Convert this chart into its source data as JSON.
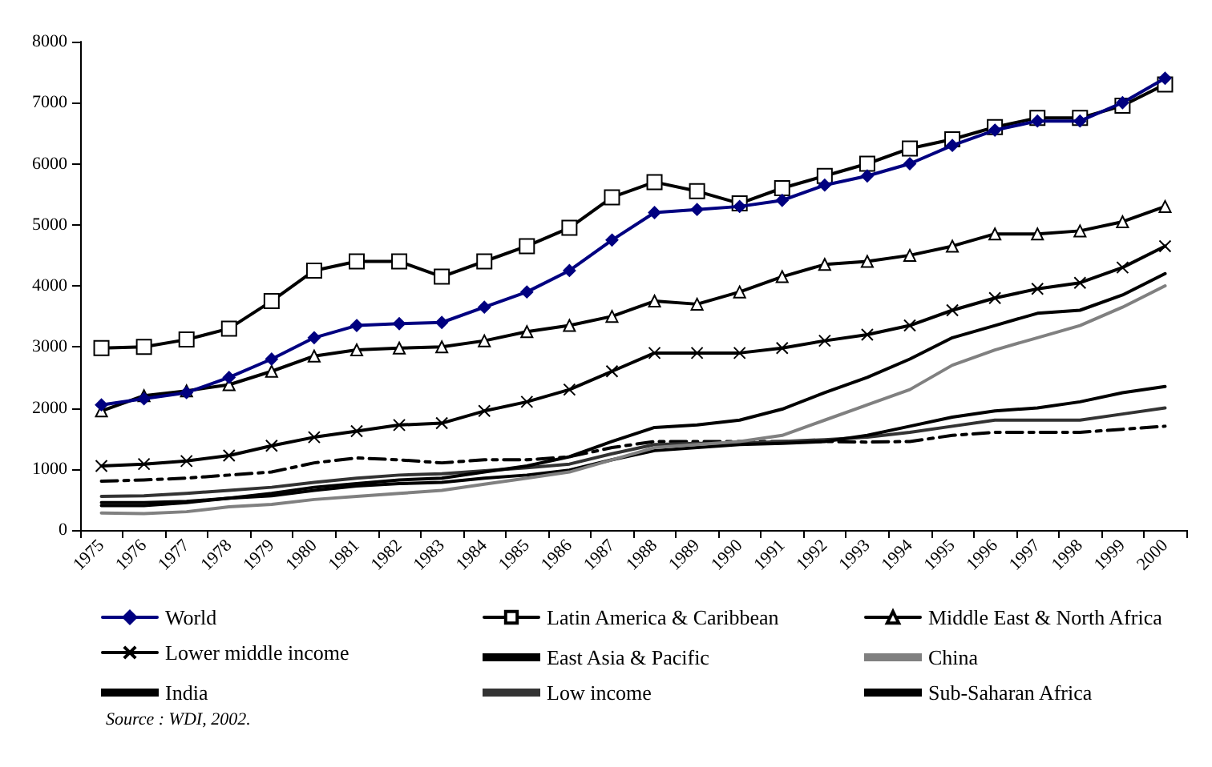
{
  "chart_data": {
    "type": "line",
    "categories": [
      "1975",
      "1976",
      "1977",
      "1978",
      "1979",
      "1980",
      "1981",
      "1982",
      "1983",
      "1984",
      "1985",
      "1986",
      "1987",
      "1988",
      "1989",
      "1990",
      "1991",
      "1992",
      "1993",
      "1994",
      "1995",
      "1996",
      "1997",
      "1998",
      "1999",
      "2000"
    ],
    "ylim": [
      0,
      8000
    ],
    "yticks": [
      0,
      1000,
      2000,
      3000,
      4000,
      5000,
      6000,
      7000,
      8000
    ],
    "grid": false,
    "legend": "bottom",
    "annotations": [
      "Source : WDI, 2002."
    ],
    "series": [
      {
        "name": "World",
        "color": "#000080",
        "marker": "diamond",
        "values": [
          2050,
          2150,
          2250,
          2500,
          2800,
          3150,
          3350,
          3380,
          3400,
          3650,
          3900,
          4250,
          4750,
          5200,
          5250,
          5300,
          5400,
          5650,
          5800,
          6000,
          6300,
          6550,
          6700,
          6700,
          7000,
          7400
        ]
      },
      {
        "name": "Latin America & Caribbean",
        "color": "#000000",
        "marker": "square",
        "values": [
          2980,
          3000,
          3120,
          3300,
          3750,
          4250,
          4400,
          4400,
          4150,
          4400,
          4650,
          4950,
          5450,
          5700,
          5550,
          5350,
          5600,
          5800,
          6000,
          6250,
          6400,
          6600,
          6750,
          6750,
          6950,
          7300
        ]
      },
      {
        "name": "Middle East & North Africa",
        "color": "#000000",
        "marker": "triangle",
        "values": [
          1950,
          2200,
          2280,
          2380,
          2600,
          2850,
          2950,
          2980,
          3000,
          3100,
          3250,
          3350,
          3500,
          3750,
          3700,
          3900,
          4150,
          4350,
          4400,
          4500,
          4650,
          4850,
          4850,
          4900,
          5050,
          5300
        ]
      },
      {
        "name": "Lower middle income",
        "color": "#000000",
        "marker": "cross",
        "values": [
          1050,
          1080,
          1130,
          1220,
          1380,
          1520,
          1620,
          1720,
          1750,
          1950,
          2100,
          2300,
          2600,
          2900,
          2900,
          2900,
          2980,
          3100,
          3200,
          3350,
          3600,
          3800,
          3950,
          4050,
          4300,
          4650
        ]
      },
      {
        "name": "East Asia & Pacific",
        "color": "#000000",
        "marker": "none",
        "values": [
          400,
          400,
          450,
          520,
          600,
          700,
          760,
          820,
          850,
          950,
          1050,
          1200,
          1450,
          1680,
          1720,
          1800,
          1980,
          2250,
          2500,
          2800,
          3150,
          3350,
          3550,
          3600,
          3850,
          4200
        ]
      },
      {
        "name": "China",
        "color": "#808080",
        "marker": "none",
        "values": [
          280,
          270,
          300,
          380,
          420,
          500,
          550,
          600,
          650,
          750,
          850,
          950,
          1150,
          1350,
          1400,
          1450,
          1550,
          1800,
          2050,
          2300,
          2700,
          2950,
          3150,
          3350,
          3650,
          4000
        ]
      },
      {
        "name": "India",
        "color": "#000000",
        "marker": "none",
        "values": [
          450,
          450,
          470,
          520,
          560,
          650,
          720,
          760,
          780,
          850,
          900,
          980,
          1150,
          1300,
          1350,
          1400,
          1420,
          1450,
          1550,
          1700,
          1850,
          1950,
          2000,
          2100,
          2250,
          2350
        ]
      },
      {
        "name": "Low income",
        "color": "#333333",
        "marker": "none",
        "values": [
          550,
          560,
          600,
          650,
          700,
          780,
          850,
          900,
          920,
          970,
          1020,
          1080,
          1250,
          1400,
          1420,
          1420,
          1450,
          1480,
          1520,
          1600,
          1700,
          1800,
          1800,
          1800,
          1900,
          2000
        ]
      },
      {
        "name": "Sub-Saharan Africa",
        "color": "#000000",
        "marker": "none",
        "line_style": "dashed",
        "values": [
          800,
          820,
          850,
          900,
          950,
          1100,
          1180,
          1150,
          1100,
          1150,
          1150,
          1200,
          1350,
          1450,
          1450,
          1450,
          1450,
          1450,
          1440,
          1450,
          1550,
          1600,
          1600,
          1600,
          1650,
          1700
        ]
      }
    ]
  }
}
